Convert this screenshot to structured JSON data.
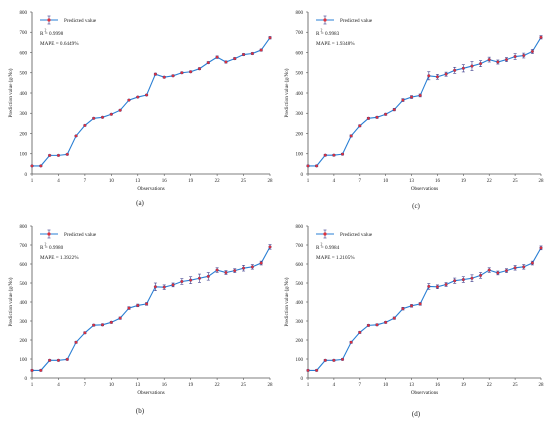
{
  "chart_data": [
    {
      "type": "line",
      "panel_label": "(a)",
      "xlabel": "Observations",
      "ylabel": "Prediction value (g/No)",
      "x_ticks": [
        1,
        4,
        7,
        10,
        13,
        16,
        19,
        22,
        25,
        28
      ],
      "y_ticks": [
        0,
        100,
        200,
        300,
        400,
        500,
        600,
        700,
        800
      ],
      "xlim": [
        1,
        28
      ],
      "ylim": [
        0,
        800
      ],
      "legend": {
        "label": "Predicted value",
        "placement": "top-left"
      },
      "annotations": {
        "r2": "R  = 0.9998",
        "r2_superscript": "2",
        "mape": "MAPE = 0.6449%"
      },
      "series": [
        {
          "name": "Predicted value",
          "x": [
            1,
            2,
            3,
            4,
            5,
            6,
            7,
            8,
            9,
            10,
            11,
            12,
            13,
            14,
            15,
            16,
            17,
            18,
            19,
            20,
            21,
            22,
            23,
            24,
            25,
            26,
            27,
            28
          ],
          "values": [
            40,
            40,
            92,
            92,
            97,
            188,
            240,
            275,
            280,
            295,
            315,
            365,
            380,
            390,
            493,
            478,
            485,
            500,
            505,
            520,
            550,
            577,
            553,
            570,
            590,
            595,
            612,
            673
          ],
          "error": [
            3,
            3,
            3,
            3,
            3,
            3,
            3,
            3,
            3,
            3,
            3,
            3,
            3,
            3,
            5,
            4,
            4,
            4,
            4,
            5,
            5,
            6,
            5,
            5,
            5,
            5,
            5,
            6
          ]
        }
      ]
    },
    {
      "type": "line",
      "panel_label": "(c)",
      "xlabel": "Observations",
      "ylabel": "Prediction value (g/No)",
      "x_ticks": [
        1,
        4,
        7,
        10,
        13,
        16,
        19,
        22,
        25,
        28
      ],
      "y_ticks": [
        0,
        100,
        200,
        300,
        400,
        500,
        600,
        700,
        800
      ],
      "xlim": [
        1,
        28
      ],
      "ylim": [
        0,
        800
      ],
      "legend": {
        "label": "Predicted value",
        "placement": "top-left"
      },
      "annotations": {
        "r2": "R  = 0.9983",
        "r2_superscript": "2",
        "mape": "MAPE = 1.9348%"
      },
      "series": [
        {
          "name": "Predicted value",
          "x": [
            1,
            2,
            3,
            4,
            5,
            6,
            7,
            8,
            9,
            10,
            11,
            12,
            13,
            14,
            15,
            16,
            17,
            18,
            19,
            20,
            21,
            22,
            23,
            24,
            25,
            26,
            27,
            28
          ],
          "values": [
            40,
            40,
            93,
            93,
            98,
            188,
            238,
            275,
            280,
            295,
            318,
            365,
            380,
            388,
            485,
            480,
            493,
            512,
            522,
            533,
            545,
            565,
            553,
            565,
            580,
            585,
            605,
            675
          ],
          "error": [
            4,
            4,
            4,
            4,
            4,
            5,
            5,
            5,
            5,
            5,
            6,
            7,
            7,
            7,
            20,
            12,
            10,
            15,
            18,
            22,
            15,
            12,
            10,
            10,
            14,
            12,
            10,
            8
          ]
        }
      ]
    },
    {
      "type": "line",
      "panel_label": "(b)",
      "xlabel": "Observations",
      "ylabel": "Prediction value (g/No)",
      "x_ticks": [
        1,
        4,
        7,
        10,
        13,
        16,
        19,
        22,
        25,
        28
      ],
      "y_ticks": [
        0,
        100,
        200,
        300,
        400,
        500,
        600,
        700,
        800
      ],
      "xlim": [
        1,
        28
      ],
      "ylim": [
        0,
        800
      ],
      "legend": {
        "label": "Predicted value",
        "placement": "top-left"
      },
      "annotations": {
        "r2": "R  = 0.9980",
        "r2_superscript": "2",
        "mape": "MAPE = 1.3922%"
      },
      "series": [
        {
          "name": "Predicted value",
          "x": [
            1,
            2,
            3,
            4,
            5,
            6,
            7,
            8,
            9,
            10,
            11,
            12,
            13,
            14,
            15,
            16,
            17,
            18,
            19,
            20,
            21,
            22,
            23,
            24,
            25,
            26,
            27,
            28
          ],
          "values": [
            40,
            40,
            93,
            93,
            98,
            188,
            238,
            278,
            280,
            293,
            315,
            368,
            382,
            390,
            480,
            478,
            490,
            508,
            515,
            525,
            535,
            568,
            555,
            565,
            578,
            585,
            605,
            690
          ],
          "error": [
            4,
            4,
            4,
            4,
            4,
            5,
            5,
            5,
            5,
            5,
            6,
            7,
            7,
            7,
            20,
            12,
            10,
            15,
            18,
            22,
            20,
            12,
            10,
            10,
            15,
            12,
            10,
            12
          ]
        }
      ]
    },
    {
      "type": "line",
      "panel_label": "(d)",
      "xlabel": "Observations",
      "ylabel": "Prediction value (g/No)",
      "x_ticks": [
        1,
        4,
        7,
        10,
        13,
        16,
        19,
        22,
        25,
        28
      ],
      "y_ticks": [
        0,
        100,
        200,
        300,
        400,
        500,
        600,
        700,
        800
      ],
      "xlim": [
        1,
        28
      ],
      "ylim": [
        0,
        800
      ],
      "legend": {
        "label": "Predicted value",
        "placement": "top-left"
      },
      "annotations": {
        "r2": "R  = 0.9984",
        "r2_superscript": "2",
        "mape": "MAPE = 1.2105%"
      },
      "series": [
        {
          "name": "Predicted value",
          "x": [
            1,
            2,
            3,
            4,
            5,
            6,
            7,
            8,
            9,
            10,
            11,
            12,
            13,
            14,
            15,
            16,
            17,
            18,
            19,
            20,
            21,
            22,
            23,
            24,
            25,
            26,
            27,
            28
          ],
          "values": [
            40,
            40,
            93,
            93,
            98,
            188,
            240,
            277,
            280,
            293,
            315,
            365,
            380,
            390,
            482,
            480,
            492,
            512,
            518,
            525,
            540,
            568,
            553,
            565,
            580,
            585,
            605,
            685
          ],
          "error": [
            4,
            4,
            4,
            4,
            4,
            5,
            5,
            5,
            5,
            5,
            6,
            7,
            7,
            7,
            15,
            10,
            10,
            14,
            15,
            18,
            15,
            12,
            10,
            10,
            12,
            12,
            10,
            10
          ]
        }
      ]
    }
  ],
  "colors": {
    "line": "#2a7fd4",
    "marker": "#e0303a",
    "error_bar": "#3a3a8a",
    "axis": "#555555",
    "grid": "#c8c8c8"
  }
}
